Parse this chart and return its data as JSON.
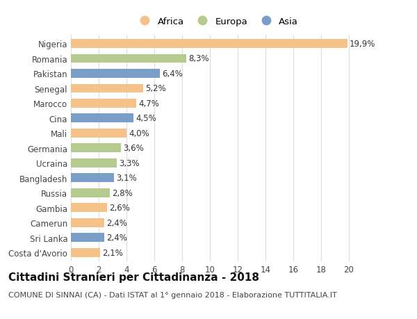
{
  "countries": [
    "Nigeria",
    "Romania",
    "Pakistan",
    "Senegal",
    "Marocco",
    "Cina",
    "Mali",
    "Germania",
    "Ucraina",
    "Bangladesh",
    "Russia",
    "Gambia",
    "Camerun",
    "Sri Lanka",
    "Costa d'Avorio"
  ],
  "values": [
    19.9,
    8.3,
    6.4,
    5.2,
    4.7,
    4.5,
    4.0,
    3.6,
    3.3,
    3.1,
    2.8,
    2.6,
    2.4,
    2.4,
    2.1
  ],
  "labels": [
    "19,9%",
    "8,3%",
    "6,4%",
    "5,2%",
    "4,7%",
    "4,5%",
    "4,0%",
    "3,6%",
    "3,3%",
    "3,1%",
    "2,8%",
    "2,6%",
    "2,4%",
    "2,4%",
    "2,1%"
  ],
  "continents": [
    "Africa",
    "Europa",
    "Asia",
    "Africa",
    "Africa",
    "Asia",
    "Africa",
    "Europa",
    "Europa",
    "Asia",
    "Europa",
    "Africa",
    "Africa",
    "Asia",
    "Africa"
  ],
  "colors": {
    "Africa": "#F5C28A",
    "Europa": "#B5CA8D",
    "Asia": "#7B9EC9"
  },
  "xlim": [
    0,
    21
  ],
  "xticks": [
    0,
    2,
    4,
    6,
    8,
    10,
    12,
    14,
    16,
    18,
    20
  ],
  "title": "Cittadini Stranieri per Cittadinanza - 2018",
  "subtitle": "COMUNE DI SINNAI (CA) - Dati ISTAT al 1° gennaio 2018 - Elaborazione TUTTITALIA.IT",
  "bg_color": "#ffffff",
  "grid_color": "#dddddd",
  "bar_height": 0.6,
  "label_fontsize": 8.5,
  "tick_fontsize": 8.5,
  "title_fontsize": 11,
  "subtitle_fontsize": 8.0,
  "legend_order": [
    "Africa",
    "Europa",
    "Asia"
  ]
}
